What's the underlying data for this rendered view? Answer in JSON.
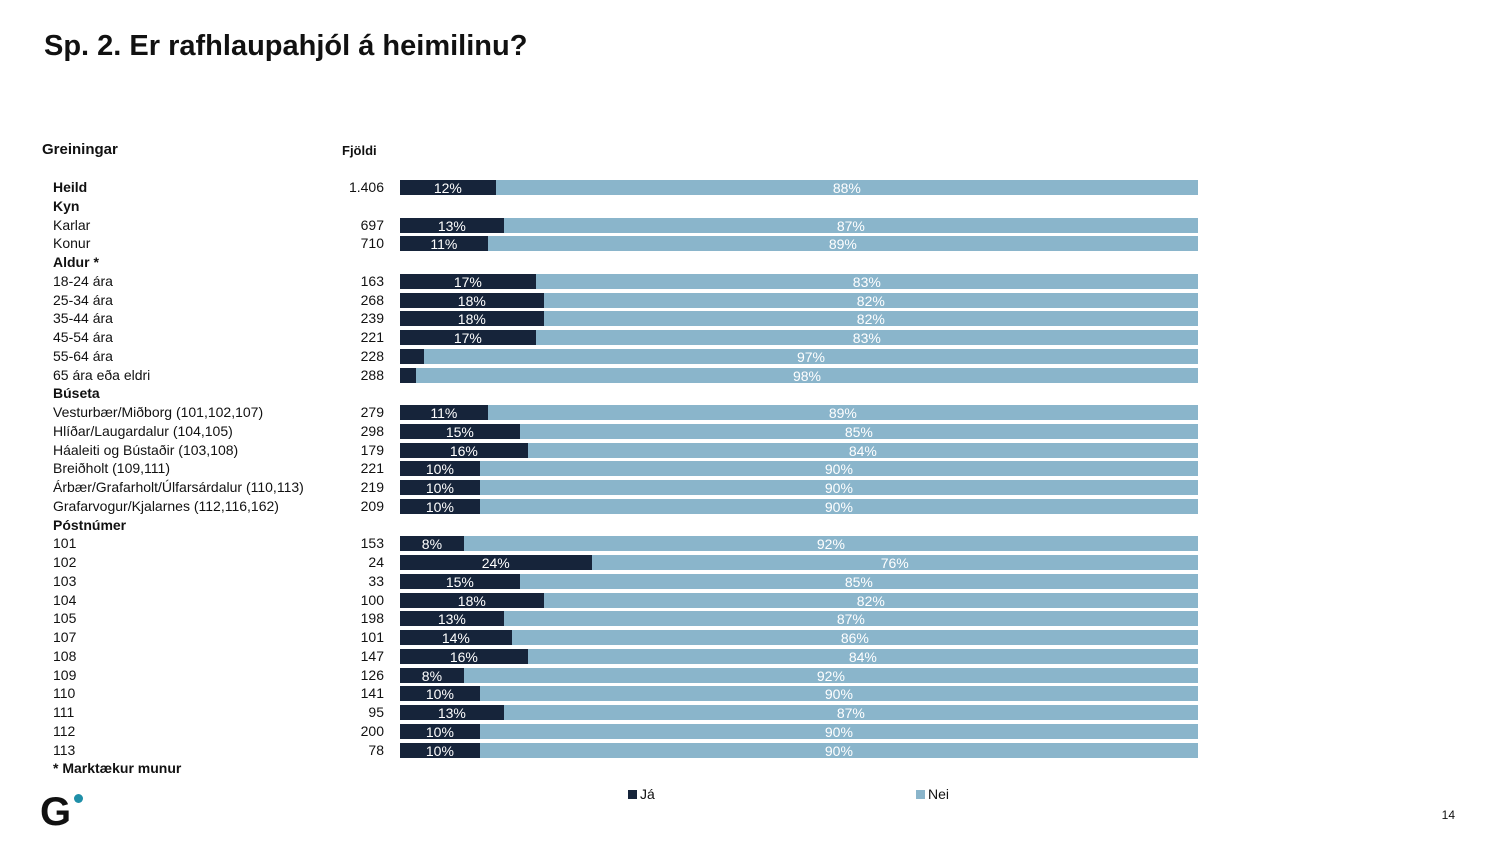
{
  "title": "Sp. 2. Er rafhlaupahjól á heimilinu?",
  "page_number": "14",
  "footnote": "* Marktækur munur",
  "chart_data": {
    "type": "bar",
    "stacked": true,
    "orientation": "horizontal",
    "title": "Sp. 2. Er rafhlaupahjól á heimilinu?",
    "category_header": "Greiningar",
    "count_header": "Fjöldi",
    "unit": "%",
    "xlim": [
      0,
      100
    ],
    "legend_position": "bottom",
    "series": [
      {
        "name": "Já",
        "color": "#16243a"
      },
      {
        "name": "Nei",
        "color": "#8ab5cb"
      }
    ],
    "rows": [
      {
        "label": "Heild",
        "bold": true,
        "n": "1.406",
        "ja": 12,
        "nei": 88
      },
      {
        "label": "Kyn",
        "bold": true
      },
      {
        "label": "Karlar",
        "n": "697",
        "ja": 13,
        "nei": 87
      },
      {
        "label": "Konur",
        "n": "710",
        "ja": 11,
        "nei": 89
      },
      {
        "label": "Aldur *",
        "bold": true
      },
      {
        "label": "18-24 ára",
        "n": "163",
        "ja": 17,
        "nei": 83
      },
      {
        "label": "25-34 ára",
        "n": "268",
        "ja": 18,
        "nei": 82
      },
      {
        "label": "35-44 ára",
        "n": "239",
        "ja": 18,
        "nei": 82
      },
      {
        "label": "45-54 ára",
        "n": "221",
        "ja": 17,
        "nei": 83
      },
      {
        "label": "55-64 ára",
        "n": "228",
        "ja": 3,
        "nei": 97,
        "hide_ja_label": true
      },
      {
        "label": "65 ára eða eldri",
        "n": "288",
        "ja": 2,
        "nei": 98,
        "hide_ja_label": true
      },
      {
        "label": "Búseta",
        "bold": true
      },
      {
        "label": "Vesturbær/Miðborg (101,102,107)",
        "n": "279",
        "ja": 11,
        "nei": 89
      },
      {
        "label": "Hlíðar/Laugardalur (104,105)",
        "n": "298",
        "ja": 15,
        "nei": 85
      },
      {
        "label": "Háaleiti og Bústaðir (103,108)",
        "n": "179",
        "ja": 16,
        "nei": 84
      },
      {
        "label": "Breiðholt (109,111)",
        "n": "221",
        "ja": 10,
        "nei": 90
      },
      {
        "label": "Árbær/Grafarholt/Úlfarsárdalur (110,113)",
        "n": "219",
        "ja": 10,
        "nei": 90
      },
      {
        "label": "Grafarvogur/Kjalarnes (112,116,162)",
        "n": "209",
        "ja": 10,
        "nei": 90
      },
      {
        "label": "Póstnúmer",
        "bold": true
      },
      {
        "label": "101",
        "n": "153",
        "ja": 8,
        "nei": 92
      },
      {
        "label": "102",
        "n": "24",
        "ja": 24,
        "nei": 76
      },
      {
        "label": "103",
        "n": "33",
        "ja": 15,
        "nei": 85
      },
      {
        "label": "104",
        "n": "100",
        "ja": 18,
        "nei": 82
      },
      {
        "label": "105",
        "n": "198",
        "ja": 13,
        "nei": 87
      },
      {
        "label": "107",
        "n": "101",
        "ja": 14,
        "nei": 86
      },
      {
        "label": "108",
        "n": "147",
        "ja": 16,
        "nei": 84
      },
      {
        "label": "109",
        "n": "126",
        "ja": 8,
        "nei": 92
      },
      {
        "label": "110",
        "n": "141",
        "ja": 10,
        "nei": 90
      },
      {
        "label": "111",
        "n": "95",
        "ja": 13,
        "nei": 87
      },
      {
        "label": "112",
        "n": "200",
        "ja": 10,
        "nei": 90
      },
      {
        "label": "113",
        "n": "78",
        "ja": 10,
        "nei": 90
      }
    ]
  }
}
